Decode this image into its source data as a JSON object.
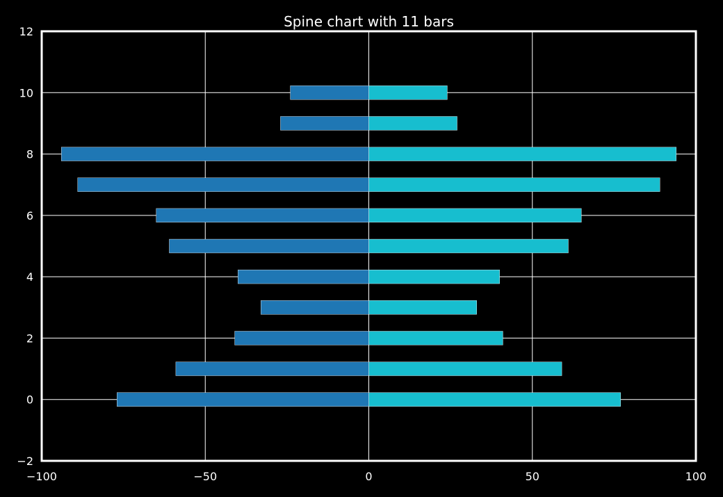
{
  "chart_data": {
    "type": "bar",
    "orientation": "horizontal",
    "title": "Spine chart with 11 bars",
    "xlabel": "",
    "ylabel": "",
    "xlim": [
      -100,
      100
    ],
    "ylim": [
      -2,
      12
    ],
    "x_ticks": [
      -100,
      -50,
      0,
      50,
      100
    ],
    "x_tick_labels": [
      "−100",
      "−50",
      "0",
      "50",
      "100"
    ],
    "y_ticks": [
      -2,
      0,
      2,
      4,
      6,
      8,
      10,
      12
    ],
    "y_tick_labels": [
      "−2",
      "0",
      "2",
      "4",
      "6",
      "8",
      "10",
      "12"
    ],
    "grid": true,
    "legend": "none",
    "categories": [
      0,
      1,
      2,
      3,
      4,
      5,
      6,
      7,
      8,
      9,
      10
    ],
    "series": [
      {
        "color": "#1f77b4",
        "values": [
          -77,
          -59,
          -41,
          -33,
          -40,
          -61,
          -65,
          -89,
          -94,
          -27,
          -24
        ]
      },
      {
        "color": "#17becf",
        "values": [
          77,
          59,
          41,
          33,
          40,
          61,
          65,
          89,
          94,
          27,
          24
        ]
      }
    ],
    "colors": {
      "background": "#000000",
      "axes": "#ffffff",
      "grid": "#ffffff",
      "text": "#ffffff"
    }
  }
}
